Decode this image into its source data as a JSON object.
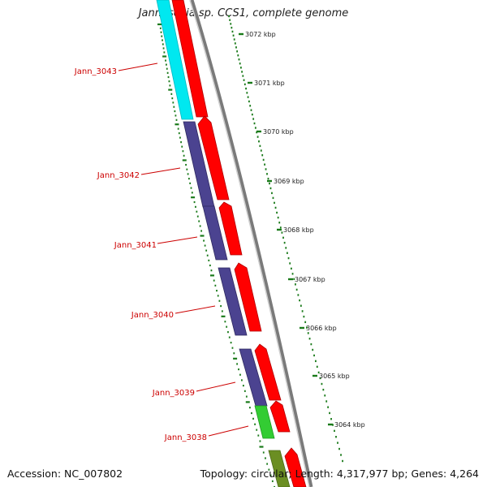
{
  "title": "Jannaschia sp. CCS1, complete genome",
  "footer": {
    "accession": "Accession: NC_007802",
    "topology": "Topology: circular; Length: 4,317,977 bp; Genes: 4,264"
  },
  "scale": {
    "ticks": [
      "3072 kbp",
      "3071 kbp",
      "3070 kbp",
      "3069 kbp",
      "3068 kbp",
      "3067 kbp",
      "3066 kbp",
      "3065 kbp",
      "3064 kbp"
    ]
  },
  "genes": [
    {
      "label": "Jann_3043",
      "color": "#00e8f0"
    },
    {
      "label": "Jann_3042",
      "color": "#4b4390"
    },
    {
      "label": "Jann_3041",
      "color": "#4b4390"
    },
    {
      "label": "Jann_3040",
      "color": "#4b4390"
    },
    {
      "label": "Jann_3039",
      "color": "#4b4390"
    },
    {
      "label": "Jann_3038",
      "color": "#33cc33"
    }
  ],
  "colors": {
    "strand": "#ff0000",
    "backbone": "#808080",
    "label": "#cc0000",
    "ticks": "#1a7a1a",
    "extra_gene": "#6b8e23"
  }
}
